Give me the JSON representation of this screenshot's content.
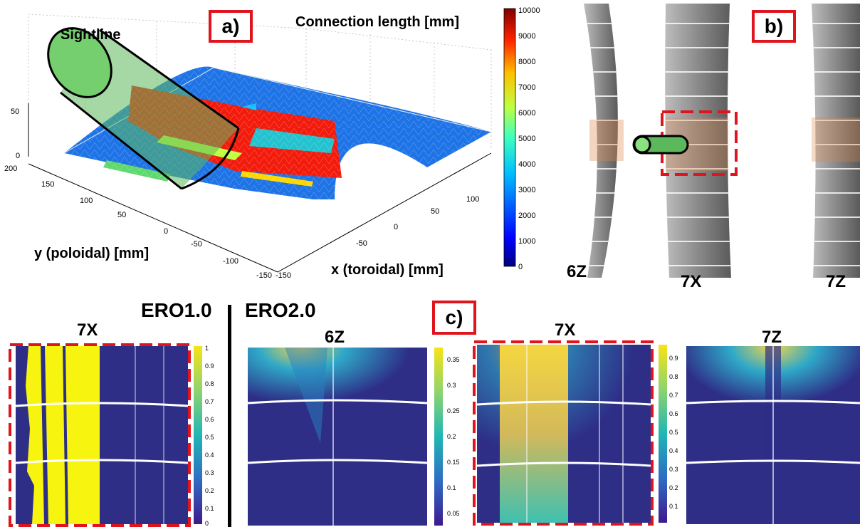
{
  "panel_a": {
    "tag": "a)",
    "sightline_label": "Sightline",
    "colorbar_title": "Connection length [mm]",
    "colorbar_ticks": [
      "10000",
      "9000",
      "8000",
      "7000",
      "6000",
      "5000",
      "4000",
      "3000",
      "2000",
      "1000",
      "0"
    ],
    "z_ticks": [
      "50",
      "0"
    ],
    "y_ticks": [
      "200",
      "150",
      "100",
      "50",
      "0",
      "-50",
      "-100",
      "-150"
    ],
    "x_ticks": [
      "100",
      "50",
      "0",
      "-50",
      "-150"
    ],
    "y_axis_label": "y (poloidal) [mm]",
    "x_axis_label": "x (toroidal) [mm]"
  },
  "panel_b": {
    "tag": "b)",
    "tiles": [
      "6Z",
      "7X",
      "7Z"
    ]
  },
  "panel_c": {
    "tag": "c)",
    "model_left": "ERO1.0",
    "model_right": "ERO2.0",
    "plots": [
      {
        "title": "7X",
        "colorbar_ticks": [
          "1",
          "0.9",
          "0.8",
          "0.7",
          "0.6",
          "0.5",
          "0.4",
          "0.3",
          "0.2",
          "0.1",
          "0"
        ]
      },
      {
        "title": "6Z",
        "colorbar_ticks": [
          "0.35",
          "0.3",
          "0.25",
          "0.2",
          "0.15",
          "0.1",
          "0.05"
        ]
      },
      {
        "title": "7X",
        "colorbar_ticks": [
          "0.9",
          "0.8",
          "0.7",
          "0.6",
          "0.5",
          "0.4",
          "0.3",
          "0.2",
          "0.1"
        ]
      },
      {
        "title": "7Z",
        "colorbar_ticks": []
      }
    ]
  },
  "colors": {
    "highlight_red": "#e0141c",
    "sightline_green": "#5cc95c",
    "field_blue": "#2a2f8a"
  }
}
